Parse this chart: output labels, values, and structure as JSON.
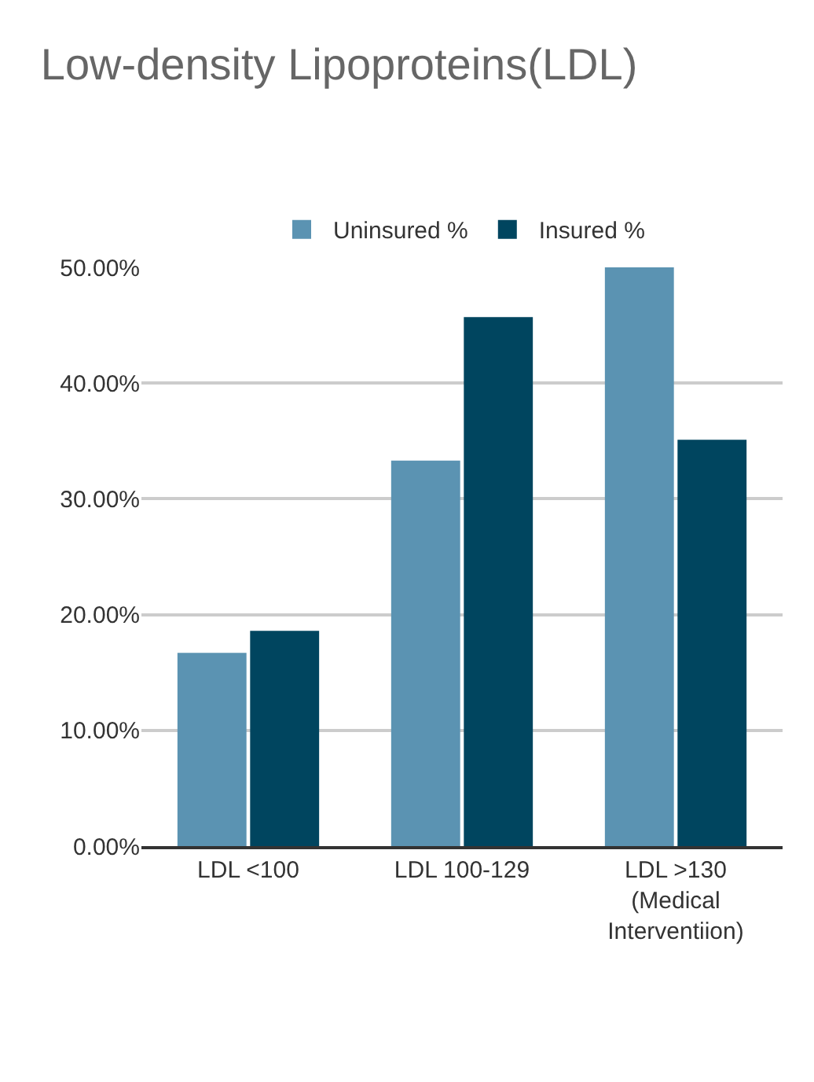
{
  "chart_data": {
    "type": "bar",
    "title": "Low-density Lipoproteins(LDL)",
    "categories": [
      "LDL <100",
      "LDL 100-129",
      "LDL >130\n(Medical\nInterventiion)"
    ],
    "series": [
      {
        "name": "Uninsured %",
        "color": "#5b93b2",
        "values": [
          16.7,
          33.3,
          50.0
        ]
      },
      {
        "name": "Insured %",
        "color": "#00455f",
        "values": [
          18.6,
          45.7,
          35.1
        ]
      }
    ],
    "ylim": [
      0,
      50
    ],
    "yticks": [
      {
        "value": 0,
        "label": "0.00%"
      },
      {
        "value": 10,
        "label": "10.00%"
      },
      {
        "value": 20,
        "label": "20.00%"
      },
      {
        "value": 30,
        "label": "30.00%"
      },
      {
        "value": 40,
        "label": "40.00%"
      },
      {
        "value": 50,
        "label": "50.00%"
      }
    ],
    "grid": "y",
    "legend": "top"
  }
}
